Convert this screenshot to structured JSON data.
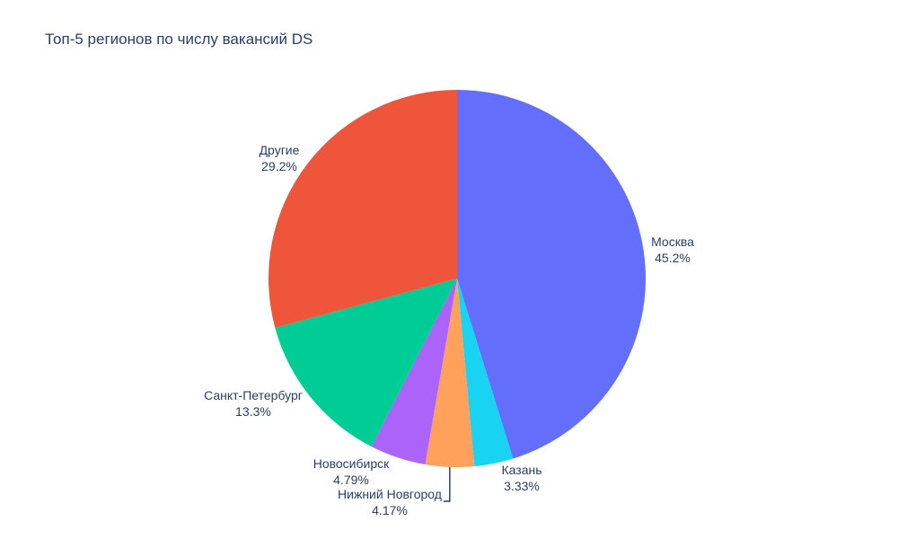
{
  "chart_data": {
    "type": "pie",
    "title": "Топ-5 регионов по числу вакансий DS",
    "slices": [
      {
        "label": "Москва",
        "percent_label": "45.2%",
        "value": 45.2,
        "color": "#636efa"
      },
      {
        "label": "Казань",
        "percent_label": "3.33%",
        "value": 3.33,
        "color": "#19d3f3"
      },
      {
        "label": "Нижний Новгород",
        "percent_label": "4.17%",
        "value": 4.17,
        "color": "#ffa15a"
      },
      {
        "label": "Новосибирск",
        "percent_label": "4.79%",
        "value": 4.79,
        "color": "#ab63fa"
      },
      {
        "label": "Санкт-Петербург",
        "percent_label": "13.3%",
        "value": 13.3,
        "color": "#00cc96"
      },
      {
        "label": "Другие",
        "percent_label": "29.2%",
        "value": 29.2,
        "color": "#ef553b"
      }
    ],
    "direction": "clockwise",
    "legend": "none"
  }
}
